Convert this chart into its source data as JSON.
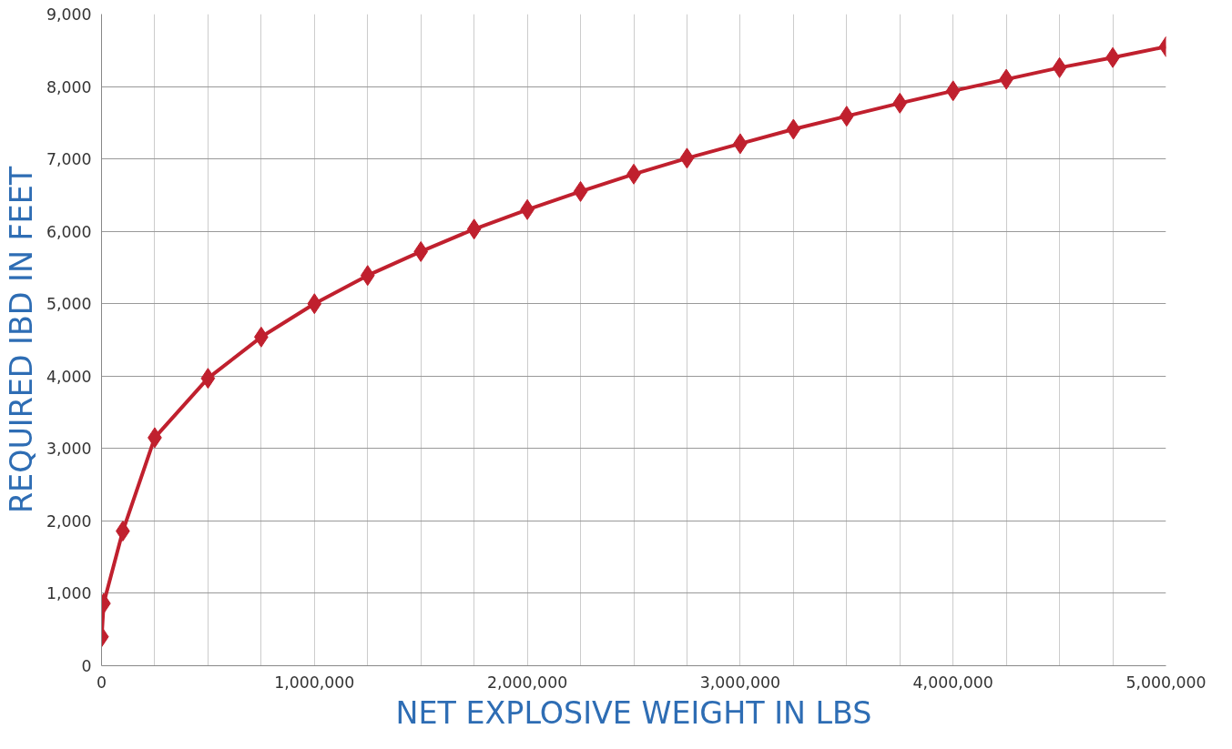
{
  "chart_data": {
    "type": "line",
    "xlabel": "NET EXPLOSIVE WEIGHT IN LBS",
    "ylabel": "REQUIRED IBD IN FEET",
    "x": [
      1000,
      10000,
      100000,
      250000,
      500000,
      750000,
      1000000,
      1250000,
      1500000,
      1750000,
      2000000,
      2250000,
      2500000,
      2750000,
      3000000,
      3250000,
      3500000,
      3750000,
      4000000,
      4250000,
      4500000,
      4750000,
      5000000
    ],
    "series": [
      {
        "color": "#c0202e",
        "values": [
          400,
          860,
          1860,
          3150,
          3970,
          4540,
          5000,
          5390,
          5720,
          6030,
          6300,
          6550,
          6790,
          7010,
          7210,
          7410,
          7590,
          7770,
          7940,
          8100,
          8260,
          8400,
          8550
        ]
      }
    ],
    "xlim": [
      0,
      5000000
    ],
    "ylim": [
      0,
      9000
    ],
    "xticks": [
      {
        "value": 0,
        "label": "0"
      },
      {
        "value": 250000,
        "label": null
      },
      {
        "value": 500000,
        "label": null
      },
      {
        "value": 750000,
        "label": null
      },
      {
        "value": 1000000,
        "label": "1,000,000"
      },
      {
        "value": 1250000,
        "label": null
      },
      {
        "value": 1500000,
        "label": null
      },
      {
        "value": 1750000,
        "label": null
      },
      {
        "value": 2000000,
        "label": "2,000,000"
      },
      {
        "value": 2250000,
        "label": null
      },
      {
        "value": 2500000,
        "label": null
      },
      {
        "value": 2750000,
        "label": null
      },
      {
        "value": 3000000,
        "label": "3,000,000"
      },
      {
        "value": 3250000,
        "label": null
      },
      {
        "value": 3500000,
        "label": null
      },
      {
        "value": 3750000,
        "label": null
      },
      {
        "value": 4000000,
        "label": "4,000,000"
      },
      {
        "value": 4250000,
        "label": null
      },
      {
        "value": 4500000,
        "label": null
      },
      {
        "value": 4750000,
        "label": null
      },
      {
        "value": 5000000,
        "label": "5,000,000"
      }
    ],
    "yticks": [
      {
        "value": 0,
        "label": "0"
      },
      {
        "value": 1000,
        "label": "1,000"
      },
      {
        "value": 2000,
        "label": "2,000"
      },
      {
        "value": 3000,
        "label": "3,000"
      },
      {
        "value": 4000,
        "label": "4,000"
      },
      {
        "value": 5000,
        "label": "5,000"
      },
      {
        "value": 6000,
        "label": "6,000"
      },
      {
        "value": 7000,
        "label": "7,000"
      },
      {
        "value": 8000,
        "label": "8,000"
      },
      {
        "value": 9000,
        "label": "9,000"
      }
    ],
    "grid": true,
    "marker": "diamond",
    "line_style": "solid"
  }
}
